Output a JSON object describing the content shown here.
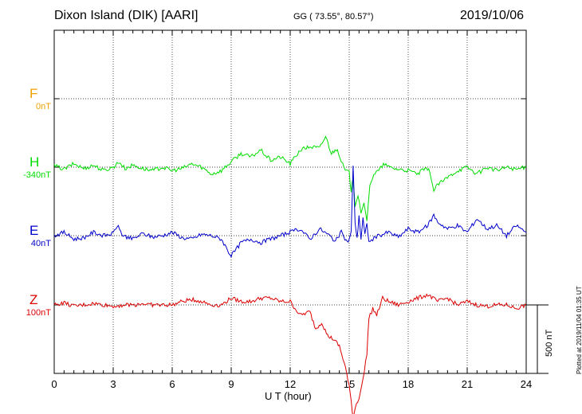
{
  "header": {
    "station": "Dixon Island (DIK)  [AARI]",
    "gg": "GG ( 73.55°,  80.57°)",
    "date": "2019/10/06"
  },
  "footer": {
    "xlabel": "U T (hour)",
    "plotted": "Plotted at 2019/11/04 01:35 UT",
    "scale": "500 nT"
  },
  "colors": {
    "F": "#f0a000",
    "H": "#00dd00",
    "E": "#0000cc",
    "Z": "#dd0000",
    "axis": "#000000"
  },
  "chart_data": {
    "type": "line",
    "title": "Dixon Island (DIK)  [AARI]",
    "xlabel": "U T (hour)",
    "xlim": [
      0,
      24
    ],
    "xticks": [
      "0",
      "3",
      "6",
      "9",
      "12",
      "15",
      "18",
      "21",
      "24"
    ],
    "grid": true,
    "scale_bar_nT": 500,
    "channels": [
      {
        "name": "F",
        "baseline": "0nT",
        "color": "#f0a000",
        "x": [],
        "y": []
      },
      {
        "name": "H",
        "baseline": "-340nT",
        "color": "#00dd00",
        "x": [
          0,
          0.5,
          1,
          1.5,
          2,
          2.5,
          3,
          3.3,
          3.6,
          4,
          4.5,
          5,
          5.5,
          6,
          6.5,
          7,
          7.5,
          8,
          8.5,
          9,
          9.5,
          10,
          10.5,
          11,
          11.5,
          12,
          12.5,
          13,
          13.5,
          13.8,
          14.1,
          14.4,
          14.6,
          14.8,
          15,
          15.1,
          15.2,
          15.3,
          15.45,
          15.6,
          15.75,
          15.9,
          16.05,
          16.25,
          16.5,
          16.8,
          17,
          17.5,
          18,
          18.5,
          18.8,
          19.1,
          19.3,
          19.5,
          19.8,
          20,
          20.5,
          21,
          21.5,
          22,
          22.5,
          23,
          23.5,
          24
        ],
        "y": [
          2,
          -3,
          5,
          -2,
          3,
          -5,
          0,
          8,
          -2,
          3,
          -2,
          -5,
          0,
          -5,
          -2,
          5,
          0,
          -10,
          -5,
          8,
          20,
          15,
          25,
          10,
          15,
          5,
          25,
          30,
          28,
          45,
          20,
          28,
          8,
          -5,
          -8,
          -35,
          -15,
          -55,
          -40,
          -65,
          -55,
          -80,
          -25,
          -10,
          -5,
          5,
          0,
          -3,
          -5,
          -10,
          -3,
          -5,
          -35,
          -25,
          -20,
          -15,
          -5,
          0,
          -10,
          0,
          -5,
          0,
          -3,
          0
        ]
      },
      {
        "name": "E",
        "baseline": "40nT",
        "color": "#0000cc",
        "x": [
          0,
          0.5,
          1,
          1.5,
          2,
          2.5,
          3,
          3.2,
          3.5,
          4,
          4.5,
          5,
          5.5,
          6,
          6.5,
          7,
          7.5,
          8,
          8.5,
          9,
          9.5,
          10,
          10.5,
          11,
          11.5,
          12,
          12.5,
          13,
          13.5,
          14,
          14.3,
          14.6,
          14.9,
          15,
          15.1,
          15.2,
          15.3,
          15.4,
          15.5,
          15.6,
          15.7,
          15.8,
          15.9,
          16,
          16.2,
          16.5,
          17,
          17.5,
          18,
          18.5,
          19,
          19.3,
          19.5,
          20,
          20.5,
          21,
          21.5,
          22,
          22.5,
          23,
          23.5,
          24
        ],
        "y": [
          0,
          5,
          -5,
          -3,
          5,
          0,
          3,
          15,
          0,
          -5,
          3,
          -2,
          0,
          5,
          -3,
          -5,
          2,
          0,
          -5,
          -30,
          -10,
          -5,
          -10,
          -5,
          0,
          5,
          10,
          -5,
          10,
          0,
          -8,
          5,
          -10,
          -5,
          5,
          100,
          20,
          -5,
          30,
          -5,
          25,
          0,
          20,
          -10,
          -5,
          0,
          5,
          -2,
          10,
          5,
          15,
          30,
          20,
          10,
          15,
          5,
          25,
          10,
          15,
          0,
          15,
          5
        ]
      },
      {
        "name": "Z",
        "baseline": "100nT",
        "color": "#dd0000",
        "x": [
          0,
          0.5,
          1,
          1.5,
          2,
          2.5,
          3,
          3.5,
          4,
          4.5,
          5,
          5.5,
          6,
          6.5,
          7,
          7.5,
          8,
          8.5,
          9,
          9.5,
          10,
          10.5,
          11,
          11.5,
          12,
          12.5,
          13,
          13.3,
          13.6,
          13.9,
          14.2,
          14.5,
          14.8,
          15,
          15.1,
          15.2,
          15.3,
          15.5,
          15.7,
          15.9,
          16,
          16.2,
          16.4,
          16.7,
          17,
          17.5,
          18,
          18.5,
          19,
          19.5,
          20,
          20.5,
          21,
          21.5,
          22,
          22.5,
          23,
          23.5,
          24
        ],
        "y": [
          0,
          3,
          -2,
          0,
          2,
          0,
          -2,
          0,
          0,
          2,
          0,
          0,
          0,
          5,
          8,
          5,
          0,
          0,
          10,
          5,
          5,
          10,
          10,
          5,
          5,
          -15,
          -10,
          -35,
          -25,
          -45,
          -50,
          -60,
          -90,
          -120,
          -140,
          -165,
          -150,
          -135,
          -110,
          -70,
          -20,
          -5,
          -15,
          10,
          5,
          0,
          5,
          10,
          15,
          5,
          10,
          0,
          5,
          0,
          -2,
          0,
          0,
          -5,
          0
        ]
      }
    ]
  }
}
